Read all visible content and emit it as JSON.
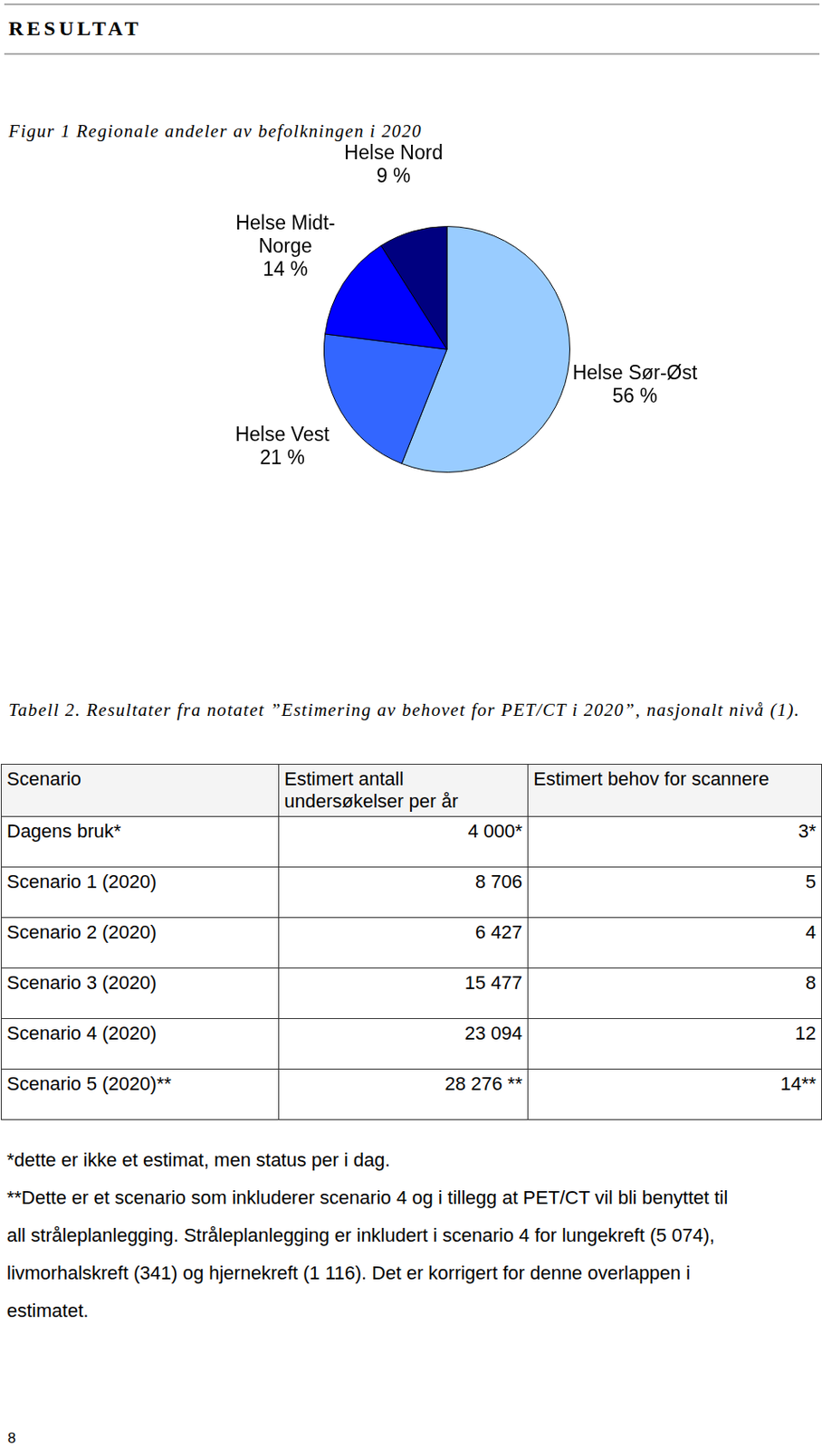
{
  "header": {
    "title": "RESULTAT"
  },
  "figure": {
    "caption": "Figur 1 Regionale andeler av befolkningen i 2020"
  },
  "chart_data": {
    "type": "pie",
    "categories": [
      "Helse Sør-Øst",
      "Helse Vest",
      "Helse Midt-Norge",
      "Helse Nord"
    ],
    "values": [
      56,
      21,
      14,
      9
    ],
    "value_labels": [
      "56 %",
      "21 %",
      "14 %",
      "9 %"
    ],
    "colors": [
      "#99ccff",
      "#3366ff",
      "#0000ff",
      "#000080"
    ],
    "data_labels": true
  },
  "table": {
    "caption": "Tabell 2. Resultater fra notatet ”Estimering av behovet for PET/CT i 2020”, nasjonalt nivå (1).",
    "columns": [
      "Scenario",
      "Estimert antall undersøkelser per år",
      "Estimert behov for scannere"
    ],
    "rows": [
      [
        "Dagens bruk*",
        "4 000*",
        "3*"
      ],
      [
        "Scenario 1 (2020)",
        "8 706",
        "5"
      ],
      [
        "Scenario 2 (2020)",
        "6 427",
        "4"
      ],
      [
        "Scenario 3 (2020)",
        "15 477",
        "8"
      ],
      [
        "Scenario 4 (2020)",
        "23 094",
        "12"
      ],
      [
        "Scenario 5 (2020)**",
        "28 276 **",
        "14**"
      ]
    ]
  },
  "footnotes": [
    "*dette er ikke et estimat, men status per i dag.",
    "**Dette er et scenario som inkluderer scenario 4 og i tillegg at PET/CT vil bli benyttet til all stråleplanlegging. Stråleplanlegging er inkludert i scenario 4 for lungekreft (5 074), livmorhalskreft (341) og hjernekreft (1 116). Det er korrigert for denne overlappen i estimatet."
  ],
  "page_number": "8"
}
